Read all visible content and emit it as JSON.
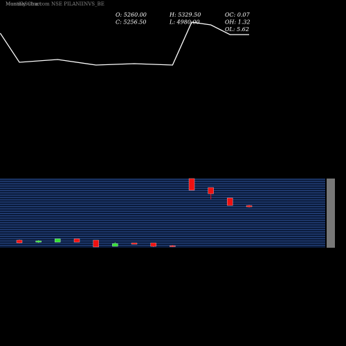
{
  "chart_data": [
    {
      "type": "candlestick",
      "title": "MunafaSutra.com NSE PILANIINVS_BE",
      "subtitle": "Monthly Chart",
      "info": [
        "O: 5260.00",
        "H: 5329.50",
        "OC: 0.07",
        "C: 5256.50",
        "L: 4980.00",
        "OH: 1.32",
        "OL: 5.62"
      ],
      "x": [
        0,
        1,
        2,
        3,
        4,
        5,
        6,
        7,
        8,
        9,
        10,
        11,
        12
      ],
      "open": [
        968,
        704,
        704,
        1144,
        968,
        176,
        616,
        616,
        264,
        8800,
        7656,
        6336,
        5368
      ],
      "high": [
        1056,
        968,
        1144,
        1144,
        968,
        704,
        616,
        616,
        352,
        8800,
        7656,
        6336,
        5456
      ],
      "low": [
        528,
        616,
        704,
        704,
        88,
        176,
        440,
        88,
        88,
        7304,
        6160,
        5368,
        5104
      ],
      "close": [
        616,
        880,
        1144,
        704,
        88,
        528,
        440,
        176,
        176,
        7304,
        6864,
        5368,
        5192
      ],
      "up_color": "#33dd33",
      "down_color": "#ee1111",
      "xlim": [
        -1,
        12
      ],
      "ylim": [
        0,
        8800
      ]
    },
    {
      "type": "line",
      "x": [
        -1,
        0,
        2,
        4,
        6,
        8,
        9,
        10,
        11,
        12
      ],
      "values": [
        76,
        55,
        57,
        53,
        54,
        53,
        84,
        82,
        75,
        75
      ],
      "color": "#ffffff",
      "xlim": [
        -1,
        12
      ],
      "ylim": [
        0,
        100
      ]
    }
  ]
}
